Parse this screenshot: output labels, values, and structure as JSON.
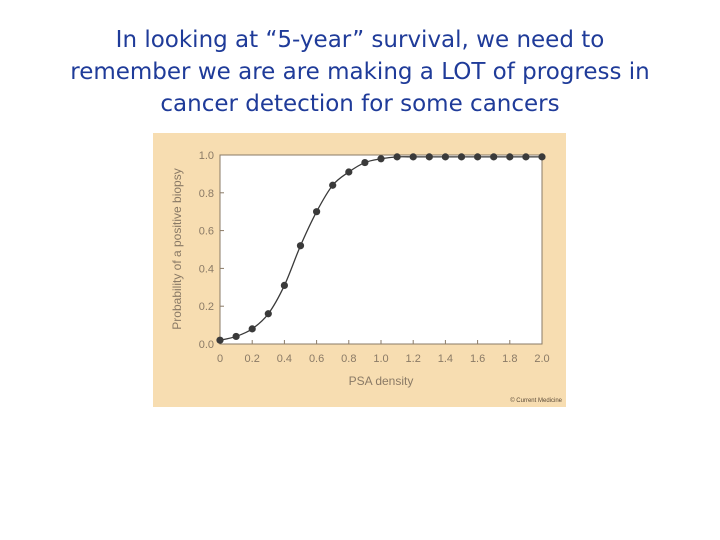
{
  "slide": {
    "title_lines": [
      "In looking at “5-year” survival, we need to",
      "remember we are are making a LOT of progress in",
      "cancer detection for some cancers"
    ]
  },
  "figure": {
    "credit": "© Current Medicine",
    "background_color": "#f7ddb1"
  },
  "chart_data": {
    "type": "line",
    "xlabel": "PSA density",
    "ylabel": "Probability of a positive biopsy",
    "xlim": [
      0,
      2.0
    ],
    "ylim": [
      0,
      1.0
    ],
    "xticks": [
      "0",
      "0.2",
      "0.4",
      "0.6",
      "0.8",
      "1.0",
      "1.2",
      "1.4",
      "1.6",
      "1.8",
      "2.0"
    ],
    "yticks": [
      "0.0",
      "0.2",
      "0.4",
      "0.6",
      "0.8",
      "1.0"
    ],
    "grid": false,
    "line_color": "#3a3a3a",
    "marker_color": "#3a3a3a",
    "series": [
      {
        "x": [
          0.0,
          0.1,
          0.2,
          0.3,
          0.4,
          0.5,
          0.6,
          0.7,
          0.8,
          0.9,
          1.0,
          1.1,
          1.2,
          1.3,
          1.4,
          1.5,
          1.6,
          1.7,
          1.8,
          1.9,
          2.0
        ],
        "y": [
          0.02,
          0.04,
          0.08,
          0.16,
          0.31,
          0.52,
          0.7,
          0.84,
          0.91,
          0.96,
          0.98,
          0.99,
          0.99,
          0.99,
          0.99,
          0.99,
          0.99,
          0.99,
          0.99,
          0.99,
          0.99
        ]
      }
    ]
  }
}
